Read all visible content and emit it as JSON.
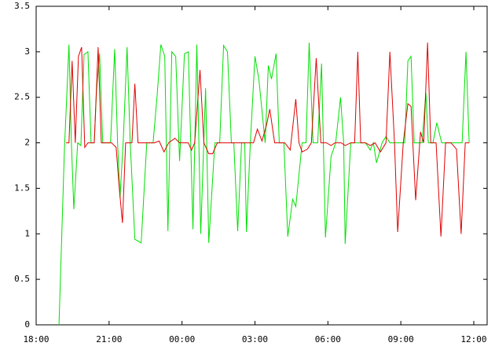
{
  "chart_data": {
    "type": "line",
    "xlim": [
      18,
      36.55
    ],
    "ylim": [
      0,
      3.5
    ],
    "xticks": [
      {
        "value": 18,
        "label": "18:00"
      },
      {
        "value": 21,
        "label": "21:00"
      },
      {
        "value": 24,
        "label": "00:00"
      },
      {
        "value": 27,
        "label": "03:00"
      },
      {
        "value": 30,
        "label": "06:00"
      },
      {
        "value": 33,
        "label": "09:00"
      },
      {
        "value": 36,
        "label": "12:00"
      }
    ],
    "yticks": [
      0,
      0.5,
      1,
      1.5,
      2,
      2.5,
      3,
      3.5
    ],
    "grid": false,
    "series": [
      {
        "color": "#00e000",
        "x": [
          18.94,
          19.16,
          19.35,
          19.45,
          19.55,
          19.71,
          19.84,
          19.97,
          20.13,
          20.26,
          20.39,
          20.48,
          20.61,
          20.74,
          20.94,
          21.06,
          21.23,
          21.35,
          21.45,
          21.58,
          21.74,
          21.87,
          22.06,
          22.32,
          22.55,
          22.81,
          22.97,
          23.13,
          23.29,
          23.42,
          23.58,
          23.74,
          23.9,
          24.1,
          24.26,
          24.45,
          24.61,
          24.77,
          24.97,
          25.1,
          25.35,
          25.55,
          25.71,
          25.87,
          26.03,
          26.13,
          26.29,
          26.45,
          26.58,
          26.65,
          26.81,
          27.0,
          27.16,
          27.42,
          27.55,
          27.68,
          27.87,
          28.0,
          28.19,
          28.35,
          28.55,
          28.68,
          28.94,
          29.1,
          29.23,
          29.39,
          29.58,
          29.74,
          29.9,
          30.13,
          30.32,
          30.52,
          30.65,
          30.71,
          30.94,
          31.23,
          31.42,
          31.55,
          31.74,
          31.87,
          32.0,
          32.23,
          32.39,
          32.55,
          32.74,
          32.97,
          33.16,
          33.29,
          33.42,
          33.55,
          33.74,
          33.87,
          34.03,
          34.13,
          34.32,
          34.48,
          34.68,
          34.9,
          35.16,
          35.39,
          35.52,
          35.68,
          35.81
        ],
        "values": [
          0,
          1.9,
          3.08,
          2.0,
          1.27,
          2.0,
          1.97,
          2.97,
          3.0,
          2.0,
          2.0,
          2.55,
          2.98,
          2.0,
          2.0,
          2.0,
          3.03,
          2.0,
          1.4,
          2.0,
          3.05,
          2.0,
          0.94,
          0.9,
          2.0,
          2.0,
          2.5,
          3.08,
          2.95,
          1.03,
          3.0,
          2.95,
          1.8,
          2.98,
          3.0,
          1.05,
          3.08,
          1.0,
          2.6,
          0.9,
          2.0,
          2.0,
          3.07,
          3.0,
          2.0,
          2.0,
          1.03,
          2.0,
          2.0,
          1.02,
          2.0,
          2.95,
          2.7,
          2.0,
          2.85,
          2.7,
          2.98,
          2.0,
          2.0,
          0.97,
          1.38,
          1.3,
          2.0,
          2.0,
          3.1,
          2.0,
          2.0,
          2.87,
          0.96,
          1.85,
          2.0,
          2.5,
          2.0,
          0.89,
          2.0,
          2.0,
          2.0,
          2.0,
          1.92,
          2.0,
          1.78,
          2.0,
          2.07,
          2.0,
          2.0,
          2.0,
          2.0,
          2.9,
          2.95,
          2.0,
          2.0,
          2.0,
          2.55,
          2.0,
          2.0,
          2.22,
          2.0,
          2.0,
          2.0,
          2.0,
          2.0,
          3.0,
          2.0
        ]
      },
      {
        "color": "#e00000",
        "x": [
          19.23,
          19.35,
          19.48,
          19.61,
          19.74,
          19.87,
          20.0,
          20.13,
          20.39,
          20.55,
          20.68,
          20.87,
          21.1,
          21.29,
          21.42,
          21.55,
          21.68,
          21.94,
          22.06,
          22.19,
          22.48,
          22.87,
          23.06,
          23.26,
          23.45,
          23.71,
          23.9,
          24.26,
          24.39,
          24.52,
          24.74,
          24.9,
          25.1,
          25.26,
          25.45,
          25.87,
          26.29,
          26.68,
          26.94,
          27.1,
          27.29,
          27.48,
          27.61,
          27.81,
          28.06,
          28.23,
          28.45,
          28.68,
          28.81,
          28.94,
          29.16,
          29.32,
          29.52,
          29.71,
          29.94,
          30.13,
          30.29,
          30.55,
          30.71,
          30.94,
          31.1,
          31.23,
          31.35,
          31.55,
          31.74,
          31.94,
          32.16,
          32.39,
          32.55,
          32.74,
          32.87,
          33.1,
          33.29,
          33.42,
          33.61,
          33.81,
          33.94,
          34.1,
          34.23,
          34.45,
          34.65,
          34.84,
          35.06,
          35.29,
          35.48,
          35.65,
          35.81
        ],
        "values": [
          2.0,
          2.0,
          2.9,
          2.0,
          2.95,
          3.05,
          1.95,
          2.0,
          2.0,
          3.05,
          2.0,
          2.0,
          2.0,
          1.95,
          1.5,
          1.12,
          2.0,
          2.0,
          2.65,
          2.0,
          2.0,
          2.0,
          2.02,
          1.9,
          2.0,
          2.05,
          2.0,
          2.0,
          1.92,
          2.0,
          2.8,
          2.0,
          1.88,
          1.88,
          2.0,
          2.0,
          2.0,
          2.0,
          2.0,
          2.15,
          2.02,
          2.2,
          2.37,
          2.0,
          2.0,
          2.0,
          1.92,
          2.48,
          2.0,
          1.9,
          1.93,
          2.0,
          2.93,
          2.0,
          2.0,
          1.97,
          2.0,
          2.0,
          1.97,
          2.0,
          2.0,
          3.0,
          2.0,
          2.0,
          1.97,
          2.0,
          1.9,
          2.0,
          3.0,
          2.0,
          1.02,
          2.0,
          2.43,
          2.4,
          1.37,
          2.12,
          2.0,
          3.1,
          2.0,
          2.0,
          0.97,
          2.0,
          2.0,
          1.93,
          1.0,
          2.0,
          2.0
        ]
      }
    ]
  }
}
